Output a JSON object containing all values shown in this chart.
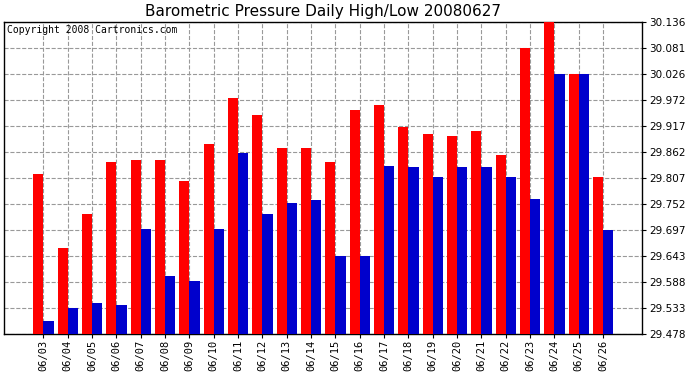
{
  "title": "Barometric Pressure Daily High/Low 20080627",
  "copyright": "Copyright 2008 Cartronics.com",
  "categories": [
    "06/03",
    "06/04",
    "06/05",
    "06/06",
    "06/07",
    "06/08",
    "06/09",
    "06/10",
    "06/11",
    "06/12",
    "06/13",
    "06/14",
    "06/15",
    "06/16",
    "06/17",
    "06/18",
    "06/19",
    "06/20",
    "06/21",
    "06/22",
    "06/23",
    "06/24",
    "06/25",
    "06/26"
  ],
  "highs": [
    29.815,
    29.66,
    29.73,
    29.84,
    29.845,
    29.845,
    29.8,
    29.878,
    29.975,
    29.94,
    29.87,
    29.87,
    29.84,
    29.95,
    29.96,
    29.915,
    29.9,
    29.895,
    29.905,
    29.855,
    30.081,
    30.136,
    30.025,
    29.808
  ],
  "lows": [
    29.505,
    29.533,
    29.543,
    29.54,
    29.7,
    29.6,
    29.59,
    29.7,
    29.86,
    29.73,
    29.755,
    29.76,
    29.643,
    29.643,
    29.833,
    29.83,
    29.808,
    29.83,
    29.83,
    29.808,
    29.762,
    30.026,
    30.026,
    29.697
  ],
  "high_color": "#FF0000",
  "low_color": "#0000CC",
  "background_color": "#FFFFFF",
  "plot_bg_color": "#FFFFFF",
  "grid_color": "#999999",
  "ylim_min": 29.478,
  "ylim_max": 30.136,
  "yticks": [
    29.478,
    29.533,
    29.588,
    29.643,
    29.697,
    29.752,
    29.807,
    29.862,
    29.917,
    29.972,
    30.026,
    30.081,
    30.136
  ],
  "title_fontsize": 11,
  "tick_fontsize": 7.5,
  "copyright_fontsize": 7
}
